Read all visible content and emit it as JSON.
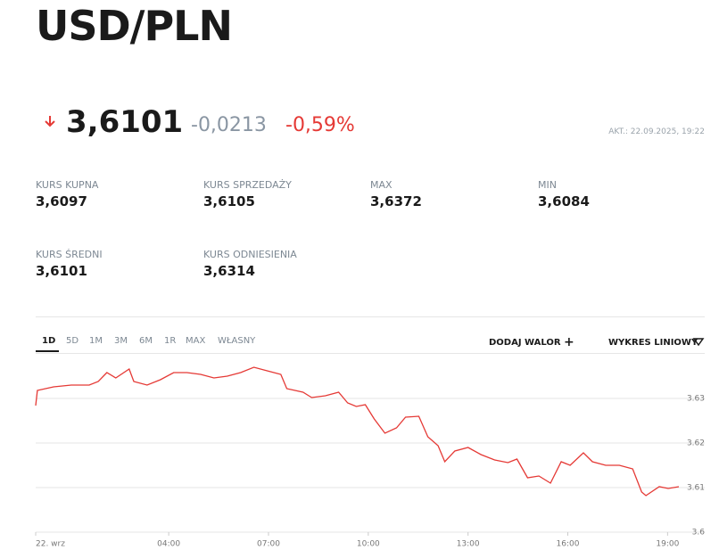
{
  "header": {
    "title": "USD/PLN",
    "price": "3,6101",
    "change": "-0,0213",
    "change_pct": "-0,59%",
    "updated": "AKT.: 22.09.2025, 19:22"
  },
  "stats": [
    {
      "label": "KURS KUPNA",
      "value": "3,6097"
    },
    {
      "label": "KURS SPRZEDAŻY",
      "value": "3,6105"
    },
    {
      "label": "MAX",
      "value": "3,6372"
    },
    {
      "label": "MIN",
      "value": "3,6084"
    },
    {
      "label": "KURS ŚREDNI",
      "value": "3,6101"
    },
    {
      "label": "KURS ODNIESIENIA",
      "value": "3,6314"
    }
  ],
  "tabs": [
    "1D",
    "5D",
    "1M",
    "3M",
    "6M",
    "1R",
    "MAX",
    "WŁASNY"
  ],
  "actions": [
    "DODAJ WALOR",
    "WYKRES LINIOWY"
  ],
  "chart_data": {
    "type": "line",
    "x": [
      0,
      0.05,
      0.54,
      1.07,
      1.61,
      1.88,
      2.14,
      2.41,
      2.81,
      2.95,
      3.35,
      3.75,
      4.15,
      4.55,
      4.96,
      5.36,
      5.76,
      6.16,
      6.56,
      6.96,
      7.37,
      7.55,
      8.04,
      8.3,
      8.71,
      9.11,
      9.38,
      9.64,
      9.91,
      10.18,
      10.5,
      10.85,
      11.12,
      11.52,
      11.79,
      12.1,
      12.3,
      12.6,
      13.0,
      13.39,
      13.8,
      14.2,
      14.47,
      14.79,
      15.13,
      15.48,
      15.8,
      16.07,
      16.47,
      16.74,
      17.14,
      17.55,
      17.95,
      18.22,
      18.35,
      18.75,
      19.02,
      19.34
    ],
    "series": [
      {
        "name": "USD/PLN",
        "color": "#e53935",
        "values": [
          3.6284,
          3.6318,
          3.6326,
          3.633,
          3.633,
          3.6338,
          3.6358,
          3.6346,
          3.6366,
          3.6338,
          3.633,
          3.6342,
          3.6358,
          3.6358,
          3.6354,
          3.6346,
          3.635,
          3.6358,
          3.637,
          3.6362,
          3.6354,
          3.6322,
          3.6314,
          3.6302,
          3.6306,
          3.6314,
          3.629,
          3.6282,
          3.6286,
          3.6254,
          3.6222,
          3.6234,
          3.6258,
          3.626,
          3.6214,
          3.6194,
          3.6158,
          3.6182,
          3.619,
          3.6174,
          3.6162,
          3.6156,
          3.6164,
          3.6122,
          3.6126,
          3.611,
          3.6158,
          3.615,
          3.6178,
          3.6158,
          3.615,
          3.615,
          3.6142,
          3.609,
          3.6082,
          3.6102,
          3.6098,
          3.6102
        ]
      }
    ],
    "xlim": [
      0,
      19.5
    ],
    "xticks": [
      {
        "value": 0,
        "label": "22. wrz"
      },
      {
        "value": 4,
        "label": "04:00"
      },
      {
        "value": 7,
        "label": "07:00"
      },
      {
        "value": 10,
        "label": "10:00"
      },
      {
        "value": 13,
        "label": "13:00"
      },
      {
        "value": 16,
        "label": "16:00"
      },
      {
        "value": 19,
        "label": "19:00"
      }
    ],
    "ylim": [
      3.6,
      3.64
    ],
    "yticks": [
      3.6,
      3.61,
      3.62,
      3.63
    ],
    "grid": true
  }
}
